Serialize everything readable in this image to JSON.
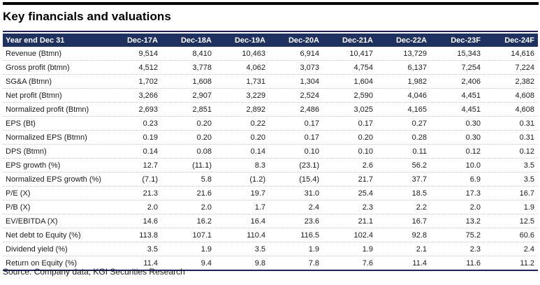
{
  "title": "Key financials and valuations",
  "source": "Source: Company data, KGI Securities Research",
  "colors": {
    "header_band": "#1f3160",
    "rule_dark": "#17255c",
    "top_bar": "#000000",
    "text": "#1a1a1a",
    "row_divider": "#d0d0d0"
  },
  "chart_data": {
    "type": "table",
    "title": "Key financials and valuations",
    "columns": [
      "Year end Dec 31",
      "Dec-17A",
      "Dec-18A",
      "Dec-19A",
      "Dec-20A",
      "Dec-21A",
      "Dec-22A",
      "Dec-23F",
      "Dec-24F"
    ],
    "rows": [
      {
        "label": "Revenue (Btmn)",
        "values": [
          "9,514",
          "8,410",
          "10,463",
          "6,914",
          "10,417",
          "13,729",
          "15,343",
          "14,616"
        ]
      },
      {
        "label": "Gross profit (btmn)",
        "values": [
          "4,512",
          "3,778",
          "4,062",
          "3,073",
          "4,754",
          "6,137",
          "7,254",
          "7,224"
        ]
      },
      {
        "label": "SG&A (Btmn)",
        "values": [
          "1,702",
          "1,608",
          "1,731",
          "1,304",
          "1,604",
          "1,982",
          "2,406",
          "2,382"
        ]
      },
      {
        "label": "Net profit (Btmn)",
        "values": [
          "3,266",
          "2,907",
          "3,229",
          "2,524",
          "2,590",
          "4,046",
          "4,451",
          "4,608"
        ]
      },
      {
        "label": "Normalized profit (Btmn)",
        "values": [
          "2,693",
          "2,851",
          "2,892",
          "2,486",
          "3,025",
          "4,165",
          "4,451",
          "4,608"
        ]
      },
      {
        "label": "EPS (Bt)",
        "values": [
          "0.23",
          "0.20",
          "0.22",
          "0.17",
          "0.17",
          "0.27",
          "0.30",
          "0.31"
        ]
      },
      {
        "label": "Normalized EPS (Btmn)",
        "values": [
          "0.19",
          "0.20",
          "0.20",
          "0.17",
          "0.20",
          "0.28",
          "0.30",
          "0.31"
        ]
      },
      {
        "label": "DPS (Btmn)",
        "values": [
          "0.14",
          "0.08",
          "0.14",
          "0.10",
          "0.10",
          "0.11",
          "0.12",
          "0.12"
        ]
      },
      {
        "label": "EPS growth (%)",
        "values": [
          "12.7",
          "(11.1)",
          "8.3",
          "(23.1)",
          "2.6",
          "56.2",
          "10.0",
          "3.5"
        ]
      },
      {
        "label": "Normalized EPS growth (%)",
        "values": [
          "(7.1)",
          "5.8",
          "(1.2)",
          "(15.4)",
          "21.7",
          "37.7",
          "6.9",
          "3.5"
        ]
      },
      {
        "label": "P/E (X)",
        "values": [
          "21.3",
          "21.6",
          "19.7",
          "31.0",
          "25.4",
          "18.5",
          "17.3",
          "16.7"
        ]
      },
      {
        "label": "P/B (X)",
        "values": [
          "2.0",
          "2.0",
          "1.7",
          "2.4",
          "2.3",
          "2.2",
          "2.0",
          "1.9"
        ]
      },
      {
        "label": "EV/EBITDA (X)",
        "values": [
          "14.6",
          "16.2",
          "16.4",
          "23.6",
          "21.1",
          "16.7",
          "13.2",
          "12.5"
        ]
      },
      {
        "label": "Net debt to Equity (%)",
        "values": [
          "113.8",
          "107.1",
          "110.4",
          "116.5",
          "102.4",
          "92.8",
          "75.2",
          "60.6"
        ]
      },
      {
        "label": "Dividend yield (%)",
        "values": [
          "3.5",
          "1.9",
          "3.5",
          "1.9",
          "1.9",
          "2.1",
          "2.3",
          "2.4"
        ]
      },
      {
        "label": "Return on Equity (%)",
        "values": [
          "11.4",
          "9.4",
          "9.8",
          "7.8",
          "7.6",
          "11.4",
          "11.6",
          "11.2"
        ]
      }
    ]
  }
}
